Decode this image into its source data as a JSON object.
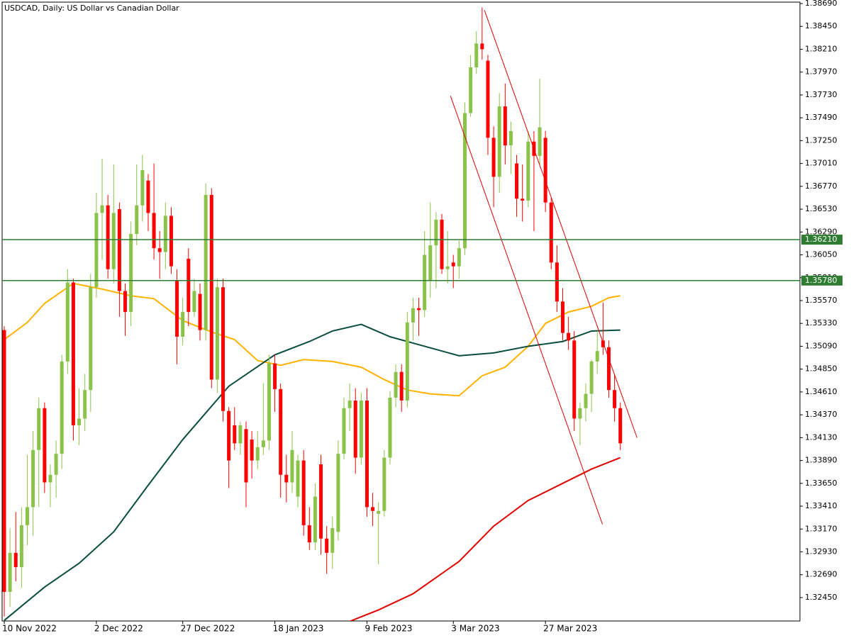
{
  "chart_data": {
    "type": "candlestick",
    "title": "USDCAD, Daily:  US Dollar vs Canadian Dollar",
    "categories": [
      "10 Nov 2022",
      null,
      null,
      null,
      null,
      null,
      null,
      null,
      null,
      null,
      null,
      null,
      null,
      null,
      null,
      null,
      "2 Dec 2022",
      null,
      null,
      null,
      null,
      null,
      null,
      null,
      null,
      null,
      null,
      null,
      null,
      null,
      null,
      "27 Dec 2022",
      null,
      null,
      null,
      null,
      null,
      null,
      null,
      null,
      null,
      null,
      null,
      null,
      null,
      null,
      null,
      "18 Jan 2023",
      null,
      null,
      null,
      null,
      null,
      null,
      null,
      null,
      null,
      null,
      null,
      null,
      null,
      null,
      null,
      "9 Feb 2023",
      null,
      null,
      null,
      null,
      null,
      null,
      null,
      null,
      null,
      null,
      null,
      null,
      null,
      null,
      "3 Mar 2023",
      null,
      null,
      null,
      null,
      null,
      null,
      null,
      null,
      null,
      null,
      null,
      null,
      null,
      null,
      null,
      "27 Mar 2023",
      null,
      null,
      null,
      null,
      null,
      null,
      null,
      null,
      null,
      null,
      null,
      null,
      null
    ],
    "open": [
      1.3526,
      1.3251,
      1.3292,
      1.3277,
      1.3321,
      1.334,
      1.34,
      1.3444,
      1.3366,
      1.3374,
      1.3396,
      1.3493,
      1.3576,
      1.3426,
      1.3433,
      1.3463,
      1.3571,
      1.3649,
      1.3657,
      1.359,
      1.3653,
      1.3567,
      1.3545,
      1.3627,
      1.3657,
      1.3683,
      1.3649,
      1.3612,
      1.3608,
      1.3646,
      1.3578,
      1.3519,
      1.3601,
      1.3545,
      1.3564,
      1.3526,
      1.3668,
      1.3474,
      1.3571,
      1.3441,
      1.3426,
      1.3407,
      1.3422,
      1.3411,
      1.3389,
      1.3403,
      1.341,
      1.3491,
      1.3464,
      1.3374,
      1.3366,
      1.3351,
      1.3389,
      1.3321,
      1.3303,
      1.3385,
      1.3307,
      1.3292,
      1.3314,
      1.3396,
      1.3444,
      1.3452,
      1.3392,
      1.3452,
      1.334,
      1.3333,
      1.3336,
      1.3392,
      1.3455,
      1.3482,
      1.3452,
      1.3534,
      1.3549,
      1.3547,
      1.3578,
      1.3615,
      1.3642,
      1.359,
      1.3597,
      1.3593,
      1.3612,
      1.3754,
      1.3802,
      1.3827,
      1.3809,
      1.3728,
      1.3687,
      1.3761,
      1.372,
      1.3701,
      1.3664,
      1.3662,
      1.3724,
      1.3709,
      1.3728,
      1.366,
      1.3597,
      1.3556,
      1.3523,
      1.3515,
      1.3433,
      1.3444,
      1.3459,
      1.3493,
      1.3515,
      1.3508,
      1.3463,
      1.3444
    ],
    "high": [
      1.353,
      1.3318,
      1.3335,
      1.334,
      1.3395,
      1.342,
      1.3455,
      1.345,
      1.3385,
      1.341,
      1.35,
      1.359,
      1.358,
      1.3465,
      1.348,
      1.3585,
      1.367,
      1.3706,
      1.3668,
      1.37,
      1.366,
      1.3575,
      1.364,
      1.37,
      1.371,
      1.369,
      1.3701,
      1.363,
      1.366,
      1.3655,
      1.359,
      1.356,
      1.3612,
      1.358,
      1.3575,
      1.368,
      1.3675,
      1.358,
      1.358,
      1.3445,
      1.3445,
      1.343,
      1.343,
      1.342,
      1.342,
      1.347,
      1.35,
      1.35,
      1.347,
      1.3395,
      1.342,
      1.3395,
      1.34,
      1.334,
      1.3365,
      1.3395,
      1.332,
      1.333,
      1.341,
      1.3455,
      1.347,
      1.3465,
      1.346,
      1.3465,
      1.3355,
      1.3345,
      1.34,
      1.3462,
      1.349,
      1.349,
      1.3545,
      1.356,
      1.356,
      1.363,
      1.366,
      1.365,
      1.3648,
      1.363,
      1.3605,
      1.362,
      1.3765,
      1.3815,
      1.384,
      1.3865,
      1.3815,
      1.374,
      1.3775,
      1.3785,
      1.3745,
      1.371,
      1.37,
      1.3735,
      1.3735,
      1.379,
      1.3735,
      1.3665,
      1.3615,
      1.357,
      1.354,
      1.3525,
      1.345,
      1.347,
      1.3495,
      1.3525,
      1.3555,
      1.3515,
      1.348,
      1.345
    ],
    "low": [
      1.3225,
      1.3235,
      1.3262,
      1.3255,
      1.33,
      1.331,
      1.334,
      1.3355,
      1.334,
      1.335,
      1.338,
      1.348,
      1.341,
      1.3405,
      1.342,
      1.344,
      1.356,
      1.36,
      1.358,
      1.3575,
      1.354,
      1.352,
      1.353,
      1.3615,
      1.364,
      1.363,
      1.36,
      1.358,
      1.359,
      1.3585,
      1.349,
      1.351,
      1.353,
      1.354,
      1.3515,
      1.3515,
      1.3465,
      1.346,
      1.343,
      1.336,
      1.34,
      1.3395,
      1.334,
      1.337,
      1.338,
      1.3395,
      1.34,
      1.344,
      1.335,
      1.3345,
      1.3355,
      1.334,
      1.331,
      1.3295,
      1.3295,
      1.329,
      1.327,
      1.3275,
      1.3305,
      1.339,
      1.342,
      1.3375,
      1.3385,
      1.333,
      1.332,
      1.328,
      1.333,
      1.3385,
      1.3445,
      1.344,
      1.3445,
      1.3515,
      1.352,
      1.354,
      1.356,
      1.357,
      1.3585,
      1.3575,
      1.357,
      1.358,
      1.3605,
      1.375,
      1.3795,
      1.381,
      1.371,
      1.3655,
      1.367,
      1.37,
      1.369,
      1.3645,
      1.364,
      1.3655,
      1.363,
      1.37,
      1.365,
      1.359,
      1.3545,
      1.3515,
      1.3505,
      1.342,
      1.3405,
      1.343,
      1.344,
      1.348,
      1.35,
      1.3455,
      1.343,
      1.34
    ],
    "close": [
      1.3251,
      1.3292,
      1.3277,
      1.3321,
      1.334,
      1.34,
      1.3444,
      1.3366,
      1.3374,
      1.3396,
      1.3493,
      1.3576,
      1.3426,
      1.3433,
      1.3463,
      1.3571,
      1.3649,
      1.3657,
      1.359,
      1.3649,
      1.3567,
      1.3545,
      1.3627,
      1.3657,
      1.3694,
      1.3649,
      1.3612,
      1.3608,
      1.3646,
      1.3593,
      1.3519,
      1.3545,
      1.3545,
      1.3567,
      1.3526,
      1.3668,
      1.3474,
      1.3571,
      1.3441,
      1.3389,
      1.3407,
      1.3426,
      1.3366,
      1.3389,
      1.3403,
      1.341,
      1.3491,
      1.3464,
      1.3374,
      1.3366,
      1.34,
      1.3389,
      1.3321,
      1.3303,
      1.3351,
      1.3307,
      1.3292,
      1.3318,
      1.3396,
      1.3444,
      1.3452,
      1.3392,
      1.3452,
      1.334,
      1.3336,
      1.3336,
      1.3392,
      1.3455,
      1.3482,
      1.3452,
      1.3534,
      1.3549,
      1.3547,
      1.3605,
      1.3615,
      1.3642,
      1.359,
      1.3593,
      1.3593,
      1.3612,
      1.3754,
      1.3802,
      1.3827,
      1.3821,
      1.3728,
      1.3687,
      1.3761,
      1.372,
      1.3735,
      1.3664,
      1.3662,
      1.3724,
      1.3709,
      1.3739,
      1.366,
      1.3597,
      1.3556,
      1.3523,
      1.3515,
      1.3433,
      1.3444,
      1.3459,
      1.3493,
      1.3504,
      1.3508,
      1.3463,
      1.3444,
      1.3407
    ],
    "up_color": "#8bc34a",
    "down_color": "#ff0000",
    "xlim": [
      -0.37,
      138.2
    ],
    "ylim": [
      1.32204,
      1.38705
    ],
    "yticks": [
      {
        "value": 1.3869,
        "label": "1.38690"
      },
      {
        "value": 1.3845,
        "label": "1.38450"
      },
      {
        "value": 1.3821,
        "label": "1.38210"
      },
      {
        "value": 1.3797,
        "label": "1.37970"
      },
      {
        "value": 1.3773,
        "label": "1.37730"
      },
      {
        "value": 1.3749,
        "label": "1.37490"
      },
      {
        "value": 1.3725,
        "label": "1.37250"
      },
      {
        "value": 1.3701,
        "label": "1.37010"
      },
      {
        "value": 1.3677,
        "label": "1.36770"
      },
      {
        "value": 1.3653,
        "label": "1.36530"
      },
      {
        "value": 1.3629,
        "label": "1.36290"
      },
      {
        "value": 1.3605,
        "label": "1.36050"
      },
      {
        "value": 1.3581,
        "label": "1.35810"
      },
      {
        "value": 1.3557,
        "label": "1.35570"
      },
      {
        "value": 1.3533,
        "label": "1.35330"
      },
      {
        "value": 1.3509,
        "label": "1.35090"
      },
      {
        "value": 1.3485,
        "label": "1.34850"
      },
      {
        "value": 1.3461,
        "label": "1.34610"
      },
      {
        "value": 1.3437,
        "label": "1.34370"
      },
      {
        "value": 1.3413,
        "label": "1.34130"
      },
      {
        "value": 1.3389,
        "label": "1.33890"
      },
      {
        "value": 1.3365,
        "label": "1.33650"
      },
      {
        "value": 1.3341,
        "label": "1.33410"
      },
      {
        "value": 1.3317,
        "label": "1.33170"
      },
      {
        "value": 1.3293,
        "label": "1.32930"
      },
      {
        "value": 1.3269,
        "label": "1.32690"
      },
      {
        "value": 1.3245,
        "label": "1.32450"
      }
    ],
    "lines": [
      {
        "color": "#ffb300",
        "x": [
          0,
          4,
          7,
          12,
          17,
          22,
          26,
          31,
          36,
          40,
          44,
          48,
          52,
          57,
          62,
          66,
          70,
          74,
          79,
          83,
          87,
          91,
          94,
          98,
          102,
          105,
          107
        ],
        "values": [
          1.3516,
          1.3534,
          1.3554,
          1.3575,
          1.3569,
          1.3562,
          1.3559,
          1.3536,
          1.3524,
          1.3516,
          1.3494,
          1.3489,
          1.3495,
          1.3493,
          1.3487,
          1.3474,
          1.3463,
          1.3459,
          1.3457,
          1.3478,
          1.3487,
          1.3509,
          1.3533,
          1.3545,
          1.3551,
          1.356,
          1.3562
        ]
      },
      {
        "color": "#0b4d3e",
        "x": [
          0,
          7,
          13,
          19,
          25,
          31,
          39,
          47,
          53,
          57,
          62,
          67,
          73,
          79,
          85,
          91,
          97,
          102,
          107
        ],
        "values": [
          1.3221,
          1.3256,
          1.3281,
          1.3314,
          1.3363,
          1.3411,
          1.3467,
          1.35,
          1.3514,
          1.3525,
          1.3532,
          1.3519,
          1.3509,
          1.3499,
          1.3502,
          1.3509,
          1.3514,
          1.3525,
          1.3526
        ]
      },
      {
        "color": "#e00000",
        "x": [
          60,
          65,
          71,
          79,
          85,
          91,
          97,
          102,
          107
        ],
        "values": [
          1.322,
          1.3232,
          1.3249,
          1.3283,
          1.332,
          1.3347,
          1.3365,
          1.338,
          1.3392
        ]
      }
    ],
    "levels": [
      {
        "value": 1.3621,
        "label": "1.36210",
        "color": "#2e7d32"
      },
      {
        "value": 1.3578,
        "label": "1.35780",
        "color": "#2e7d32"
      }
    ],
    "trendlines": [
      {
        "color": "#e00000",
        "x": [
          83.4,
          109.9
        ],
        "values": [
          1.3862,
          1.3413
        ]
      },
      {
        "color": "#e00000",
        "x": [
          77.5,
          103.9
        ],
        "values": [
          1.3772,
          1.3322
        ]
      }
    ]
  }
}
